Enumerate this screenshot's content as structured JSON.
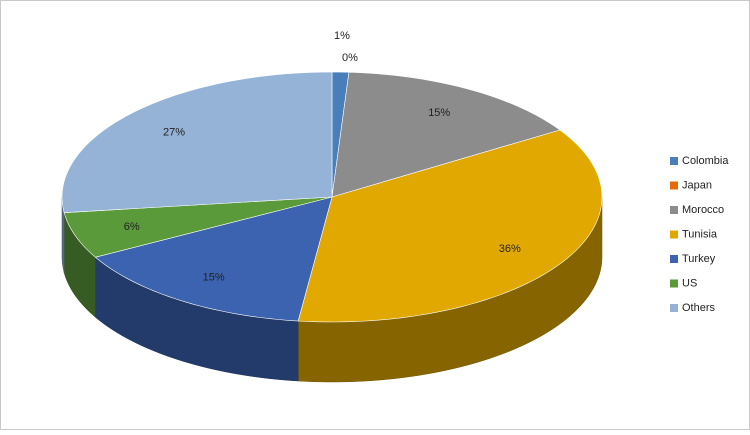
{
  "chart_data": {
    "type": "pie",
    "categories": [
      "Colombia",
      "Japan",
      "Morocco",
      "Tunisia",
      "Turkey",
      "US",
      "Others"
    ],
    "values": [
      1,
      0,
      15,
      36,
      15,
      6,
      27
    ],
    "value_labels": [
      "1%",
      "0%",
      "15%",
      "36%",
      "15%",
      "6%",
      "27%"
    ],
    "colors": [
      "#4a7ebb",
      "#e46c0a",
      "#8c8c8c",
      "#e0a800",
      "#3b63b0",
      "#5a9a3a",
      "#95b3d7"
    ],
    "legend": "right"
  }
}
